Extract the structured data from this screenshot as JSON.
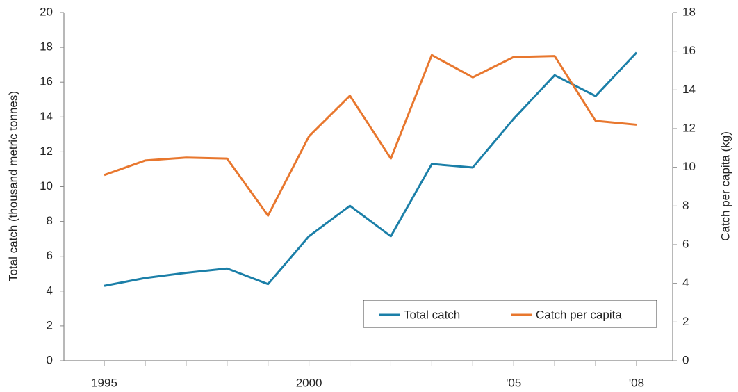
{
  "chart_data": {
    "type": "line",
    "categories": [
      "1995",
      null,
      null,
      null,
      null,
      "2000",
      null,
      null,
      null,
      null,
      "'05",
      null,
      null,
      "'08"
    ],
    "series": [
      {
        "name": "Total catch",
        "color": "#1b7fa8",
        "values": [
          4.3,
          4.75,
          5.05,
          5.3,
          4.4,
          7.15,
          8.9,
          7.15,
          11.3,
          11.1,
          13.9,
          16.4,
          15.2,
          17.7
        ]
      },
      {
        "name": "Catch per capita",
        "color": "#e8772e",
        "axis": "y2",
        "values": [
          9.6,
          10.35,
          10.5,
          10.45,
          7.5,
          11.6,
          13.7,
          10.45,
          15.8,
          14.65,
          15.7,
          15.75,
          12.4,
          12.2
        ]
      }
    ],
    "ylabel": "Total catch (thousand metric tonnes)",
    "y2label": "Catch per capita (kg)",
    "ylim": [
      0,
      20
    ],
    "yticks": [
      0,
      2,
      4,
      6,
      8,
      10,
      12,
      14,
      16,
      18,
      20
    ],
    "y2lim": [
      0,
      18
    ],
    "y2ticks": [
      0,
      2,
      4,
      6,
      8,
      10,
      12,
      14,
      16,
      18
    ],
    "grid": false,
    "legend": "lower right"
  }
}
